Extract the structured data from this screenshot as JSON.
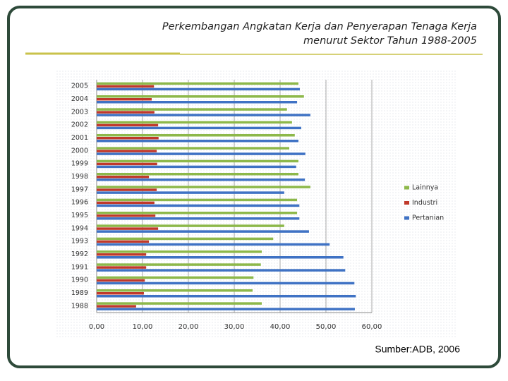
{
  "chart_data": {
    "type": "bar",
    "orientation": "horizontal",
    "title": "Perkembangan Angkatan Kerja dan Penyerapan Tenaga Kerja",
    "subtitle": "menurut Sektor Tahun 1988-2005",
    "source": "Sumber:ADB, 2006",
    "categories": [
      "1988",
      "1989",
      "1990",
      "1991",
      "1992",
      "1993",
      "1994",
      "1995",
      "1996",
      "1997",
      "1998",
      "1999",
      "2000",
      "2001",
      "2002",
      "2003",
      "2004",
      "2005"
    ],
    "series": [
      {
        "name": "Lainnya",
        "color": "#8db84a",
        "values": [
          36.0,
          34.0,
          34.2,
          35.8,
          36.0,
          38.5,
          40.9,
          43.7,
          43.7,
          46.6,
          44.0,
          44.0,
          42.0,
          43.2,
          42.6,
          41.5,
          45.2,
          44.0
        ]
      },
      {
        "name": "Industri",
        "color": "#c0392b",
        "values": [
          8.6,
          10.3,
          10.5,
          10.8,
          10.8,
          11.4,
          13.4,
          12.8,
          12.6,
          13.1,
          11.4,
          13.2,
          13.1,
          13.5,
          13.4,
          12.6,
          12.0,
          12.5
        ]
      },
      {
        "name": "Pertanian",
        "color": "#3f72c4",
        "values": [
          56.3,
          56.5,
          56.2,
          54.2,
          53.8,
          50.8,
          46.3,
          44.2,
          44.2,
          40.9,
          45.4,
          43.5,
          45.5,
          44.0,
          44.6,
          46.6,
          43.7,
          44.3
        ]
      }
    ],
    "xlim": [
      0,
      60
    ],
    "xticks": [
      {
        "value": 0,
        "label": "0,00"
      },
      {
        "value": 10,
        "label": "10,00"
      },
      {
        "value": 20,
        "label": "20,00"
      },
      {
        "value": 30,
        "label": "30,00"
      },
      {
        "value": 40,
        "label": "40,00"
      },
      {
        "value": 50,
        "label": "50,00"
      },
      {
        "value": 60,
        "label": "60,00"
      }
    ],
    "grid": true,
    "legend": "right"
  }
}
